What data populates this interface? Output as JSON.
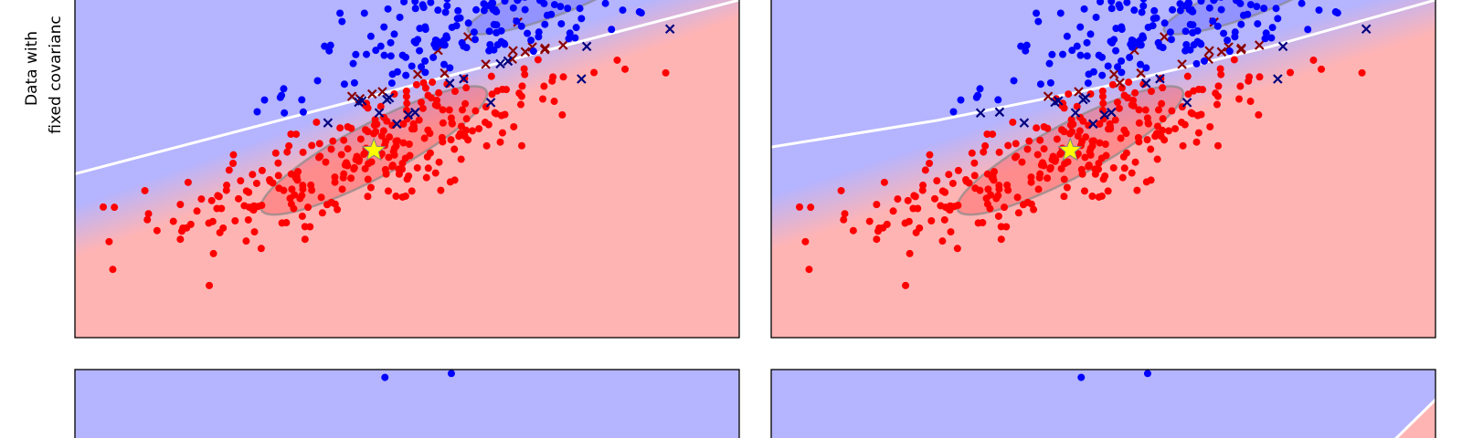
{
  "figure": {
    "row_label_lines": [
      "Data with",
      "fixed covarianc"
    ]
  },
  "chart_data": [
    {
      "type": "scatter",
      "panel": "top-left",
      "classes": [
        {
          "color": "#0000ff"
        },
        {
          "color": "#ff0000"
        }
      ],
      "misclassified_color_class0": "#8b0000",
      "misclassified_color_class1": "#000080",
      "boundary": {
        "type": "line",
        "color": "#ffffff",
        "points": [
          [
            -2.0,
            0.45
          ],
          [
            4.0,
            3.05
          ]
        ]
      },
      "mean_class1": [
        0.7,
        0.8
      ],
      "ellipse_class1": {
        "center": [
          0.7,
          0.8
        ],
        "width": 2.3,
        "height": 0.8,
        "angle_deg": 28
      },
      "ellipse_class0": {
        "center": [
          2.3,
          3.05
        ],
        "width": 1.6,
        "height": 0.5,
        "angle_deg": 20
      },
      "xlim": [
        -2.0,
        4.0
      ],
      "ylim": [
        -2.0,
        3.05
      ],
      "grid": false
    },
    {
      "type": "scatter",
      "panel": "top-right",
      "classes": [
        {
          "color": "#0000ff"
        },
        {
          "color": "#ff0000"
        }
      ],
      "misclassified_color_class0": "#8b0000",
      "misclassified_color_class1": "#000080",
      "boundary": {
        "type": "curve",
        "color": "#ffffff",
        "points": [
          [
            -2.0,
            0.85
          ],
          [
            -0.5,
            1.25
          ],
          [
            1.0,
            1.75
          ],
          [
            2.5,
            2.35
          ],
          [
            4.0,
            3.05
          ]
        ]
      },
      "mean_class1": [
        0.7,
        0.8
      ],
      "ellipse_class1": {
        "center": [
          0.7,
          0.8
        ],
        "width": 2.3,
        "height": 0.8,
        "angle_deg": 28
      },
      "ellipse_class0": {
        "center": [
          2.3,
          3.05
        ],
        "width": 1.6,
        "height": 0.5,
        "angle_deg": 20
      },
      "xlim": [
        -2.0,
        4.0
      ],
      "ylim": [
        -2.0,
        3.05
      ],
      "grid": false
    },
    {
      "type": "scatter",
      "panel": "bottom-left",
      "points_class0": [
        [
          0.8,
          3.0
        ],
        [
          1.4,
          3.3
        ]
      ],
      "xlim": [
        -2.0,
        4.0
      ],
      "ylim": [
        -2.0,
        3.6
      ],
      "grid": false
    },
    {
      "type": "scatter",
      "panel": "bottom-right",
      "points_class0": [
        [
          0.8,
          3.0
        ],
        [
          1.4,
          3.3
        ]
      ],
      "boundary_corner": true,
      "xlim": [
        -2.0,
        4.0
      ],
      "ylim": [
        -2.0,
        3.6
      ],
      "grid": false
    }
  ]
}
